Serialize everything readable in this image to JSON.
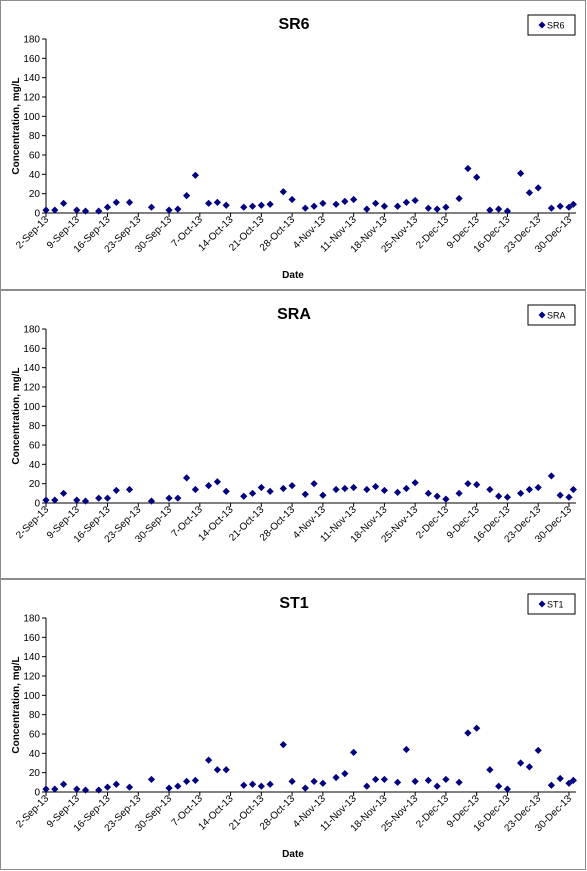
{
  "colors": {
    "marker": "#000080",
    "axis": "#000000",
    "background": "#ffffff"
  },
  "chart_data": [
    {
      "type": "scatter",
      "title": "SR6",
      "xlabel": "Date",
      "ylabel": "Concentration, mg/L",
      "ylim": [
        0,
        180
      ],
      "yticks": [
        0,
        20,
        40,
        60,
        80,
        100,
        120,
        140,
        160,
        180
      ],
      "xlim": [
        "2013-09-02",
        "2013-12-31"
      ],
      "xtick_labels": [
        "2-Sep-13",
        "9-Sep-13",
        "16-Sep-13",
        "23-Sep-13",
        "30-Sep-13",
        "7-Oct-13",
        "14-Oct-13",
        "21-Oct-13",
        "28-Oct-13",
        "4-Nov-13",
        "11-Nov-13",
        "18-Nov-13",
        "25-Nov-13",
        "2-Dec-13",
        "9-Dec-13",
        "16-Dec-13",
        "23-Dec-13",
        "30-Dec-13"
      ],
      "legend": "top-right",
      "grid": false,
      "series": [
        {
          "name": "SR6",
          "marker": "diamond",
          "points": [
            [
              "2013-09-02",
              3
            ],
            [
              "2013-09-04",
              3
            ],
            [
              "2013-09-06",
              10
            ],
            [
              "2013-09-09",
              3
            ],
            [
              "2013-09-11",
              2
            ],
            [
              "2013-09-14",
              2
            ],
            [
              "2013-09-16",
              6
            ],
            [
              "2013-09-18",
              11
            ],
            [
              "2013-09-21",
              11
            ],
            [
              "2013-09-26",
              6
            ],
            [
              "2013-09-30",
              3
            ],
            [
              "2013-10-02",
              4
            ],
            [
              "2013-10-04",
              18
            ],
            [
              "2013-10-06",
              39
            ],
            [
              "2013-10-09",
              10
            ],
            [
              "2013-10-11",
              11
            ],
            [
              "2013-10-13",
              8
            ],
            [
              "2013-10-17",
              6
            ],
            [
              "2013-10-19",
              7
            ],
            [
              "2013-10-21",
              8
            ],
            [
              "2013-10-23",
              9
            ],
            [
              "2013-10-26",
              22
            ],
            [
              "2013-10-28",
              14
            ],
            [
              "2013-10-31",
              5
            ],
            [
              "2013-11-02",
              7
            ],
            [
              "2013-11-04",
              10
            ],
            [
              "2013-11-07",
              9
            ],
            [
              "2013-11-09",
              12
            ],
            [
              "2013-11-11",
              14
            ],
            [
              "2013-11-14",
              4
            ],
            [
              "2013-11-16",
              10
            ],
            [
              "2013-11-18",
              7
            ],
            [
              "2013-11-21",
              7
            ],
            [
              "2013-11-23",
              11
            ],
            [
              "2013-11-25",
              13
            ],
            [
              "2013-11-28",
              5
            ],
            [
              "2013-11-30",
              4
            ],
            [
              "2013-12-02",
              6
            ],
            [
              "2013-12-05",
              15
            ],
            [
              "2013-12-07",
              46
            ],
            [
              "2013-12-09",
              37
            ],
            [
              "2013-12-12",
              3
            ],
            [
              "2013-12-14",
              4
            ],
            [
              "2013-12-16",
              2
            ],
            [
              "2013-12-19",
              41
            ],
            [
              "2013-12-21",
              21
            ],
            [
              "2013-12-23",
              26
            ],
            [
              "2013-12-26",
              5
            ],
            [
              "2013-12-28",
              7
            ],
            [
              "2013-12-30",
              6
            ],
            [
              "2013-12-31",
              9
            ]
          ]
        }
      ]
    },
    {
      "type": "scatter",
      "title": "SRA",
      "xlabel": "",
      "ylabel": "Concentration, mg/L",
      "ylim": [
        0,
        180
      ],
      "yticks": [
        0,
        20,
        40,
        60,
        80,
        100,
        120,
        140,
        160,
        180
      ],
      "xlim": [
        "2013-09-02",
        "2013-12-31"
      ],
      "xtick_labels": [
        "2-Sep-13",
        "9-Sep-13",
        "16-Sep-13",
        "23-Sep-13",
        "30-Sep-13",
        "7-Oct-13",
        "14-Oct-13",
        "21-Oct-13",
        "28-Oct-13",
        "4-Nov-13",
        "11-Nov-13",
        "18-Nov-13",
        "25-Nov-13",
        "2-Dec-13",
        "9-Dec-13",
        "16-Dec-13",
        "23-Dec-13",
        "30-Dec-13"
      ],
      "legend": "top-right",
      "grid": false,
      "series": [
        {
          "name": "SRA",
          "marker": "diamond",
          "points": [
            [
              "2013-09-02",
              3
            ],
            [
              "2013-09-04",
              3
            ],
            [
              "2013-09-06",
              10
            ],
            [
              "2013-09-09",
              3
            ],
            [
              "2013-09-11",
              2
            ],
            [
              "2013-09-14",
              5
            ],
            [
              "2013-09-16",
              5
            ],
            [
              "2013-09-18",
              13
            ],
            [
              "2013-09-21",
              14
            ],
            [
              "2013-09-26",
              2
            ],
            [
              "2013-09-30",
              5
            ],
            [
              "2013-10-02",
              5
            ],
            [
              "2013-10-04",
              26
            ],
            [
              "2013-10-06",
              14
            ],
            [
              "2013-10-09",
              18
            ],
            [
              "2013-10-11",
              22
            ],
            [
              "2013-10-13",
              12
            ],
            [
              "2013-10-17",
              7
            ],
            [
              "2013-10-19",
              10
            ],
            [
              "2013-10-21",
              16
            ],
            [
              "2013-10-23",
              12
            ],
            [
              "2013-10-26",
              15
            ],
            [
              "2013-10-28",
              18
            ],
            [
              "2013-10-31",
              9
            ],
            [
              "2013-11-02",
              20
            ],
            [
              "2013-11-04",
              8
            ],
            [
              "2013-11-07",
              14
            ],
            [
              "2013-11-09",
              15
            ],
            [
              "2013-11-11",
              16
            ],
            [
              "2013-11-14",
              14
            ],
            [
              "2013-11-16",
              17
            ],
            [
              "2013-11-18",
              13
            ],
            [
              "2013-11-21",
              11
            ],
            [
              "2013-11-23",
              15
            ],
            [
              "2013-11-25",
              21
            ],
            [
              "2013-11-28",
              10
            ],
            [
              "2013-11-30",
              7
            ],
            [
              "2013-12-02",
              4
            ],
            [
              "2013-12-05",
              10
            ],
            [
              "2013-12-07",
              20
            ],
            [
              "2013-12-09",
              19
            ],
            [
              "2013-12-12",
              14
            ],
            [
              "2013-12-14",
              7
            ],
            [
              "2013-12-16",
              6
            ],
            [
              "2013-12-19",
              10
            ],
            [
              "2013-12-21",
              14
            ],
            [
              "2013-12-23",
              16
            ],
            [
              "2013-12-26",
              28
            ],
            [
              "2013-12-28",
              8
            ],
            [
              "2013-12-30",
              6
            ],
            [
              "2013-12-31",
              14
            ]
          ]
        }
      ]
    },
    {
      "type": "scatter",
      "title": "ST1",
      "xlabel": "Date",
      "ylabel": "Concentration, mg/L",
      "ylim": [
        0,
        180
      ],
      "yticks": [
        0,
        20,
        40,
        60,
        80,
        100,
        120,
        140,
        160,
        180
      ],
      "xlim": [
        "2013-09-02",
        "2013-12-31"
      ],
      "xtick_labels": [
        "2-Sep-13",
        "9-Sep-13",
        "16-Sep-13",
        "23-Sep-13",
        "30-Sep-13",
        "7-Oct-13",
        "14-Oct-13",
        "21-Oct-13",
        "28-Oct-13",
        "4-Nov-13",
        "11-Nov-13",
        "18-Nov-13",
        "25-Nov-13",
        "2-Dec-13",
        "9-Dec-13",
        "16-Dec-13",
        "23-Dec-13",
        "30-Dec-13"
      ],
      "legend": "top-right",
      "grid": false,
      "series": [
        {
          "name": "ST1",
          "marker": "diamond",
          "points": [
            [
              "2013-09-02",
              3
            ],
            [
              "2013-09-04",
              3
            ],
            [
              "2013-09-06",
              8
            ],
            [
              "2013-09-09",
              3
            ],
            [
              "2013-09-11",
              2
            ],
            [
              "2013-09-14",
              2
            ],
            [
              "2013-09-16",
              5
            ],
            [
              "2013-09-18",
              8
            ],
            [
              "2013-09-21",
              5
            ],
            [
              "2013-09-26",
              13
            ],
            [
              "2013-09-30",
              4
            ],
            [
              "2013-10-02",
              6
            ],
            [
              "2013-10-04",
              11
            ],
            [
              "2013-10-06",
              12
            ],
            [
              "2013-10-09",
              33
            ],
            [
              "2013-10-11",
              23
            ],
            [
              "2013-10-13",
              23
            ],
            [
              "2013-10-17",
              7
            ],
            [
              "2013-10-19",
              8
            ],
            [
              "2013-10-21",
              6
            ],
            [
              "2013-10-23",
              8
            ],
            [
              "2013-10-26",
              49
            ],
            [
              "2013-10-28",
              11
            ],
            [
              "2013-10-31",
              4
            ],
            [
              "2013-11-02",
              11
            ],
            [
              "2013-11-04",
              9
            ],
            [
              "2013-11-07",
              15
            ],
            [
              "2013-11-09",
              19
            ],
            [
              "2013-11-11",
              41
            ],
            [
              "2013-11-14",
              6
            ],
            [
              "2013-11-16",
              13
            ],
            [
              "2013-11-18",
              13
            ],
            [
              "2013-11-21",
              10
            ],
            [
              "2013-11-23",
              44
            ],
            [
              "2013-11-25",
              11
            ],
            [
              "2013-11-28",
              12
            ],
            [
              "2013-11-30",
              6
            ],
            [
              "2013-12-02",
              13
            ],
            [
              "2013-12-05",
              10
            ],
            [
              "2013-12-07",
              61
            ],
            [
              "2013-12-09",
              66
            ],
            [
              "2013-12-12",
              23
            ],
            [
              "2013-12-14",
              6
            ],
            [
              "2013-12-16",
              3
            ],
            [
              "2013-12-19",
              30
            ],
            [
              "2013-12-21",
              26
            ],
            [
              "2013-12-23",
              43
            ],
            [
              "2013-12-26",
              7
            ],
            [
              "2013-12-28",
              14
            ],
            [
              "2013-12-30",
              9
            ],
            [
              "2013-12-31",
              12
            ]
          ]
        }
      ]
    }
  ]
}
